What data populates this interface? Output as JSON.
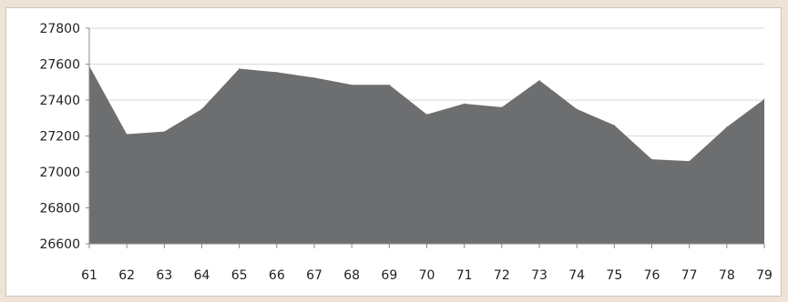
{
  "chart_data": {
    "type": "area",
    "x": [
      "61",
      "62",
      "63",
      "64",
      "65",
      "66",
      "67",
      "68",
      "69",
      "70",
      "71",
      "72",
      "73",
      "74",
      "75",
      "76",
      "77",
      "78",
      "79"
    ],
    "values": [
      27590,
      27210,
      27225,
      27350,
      27575,
      27555,
      27525,
      27485,
      27485,
      27320,
      27380,
      27360,
      27510,
      27350,
      27260,
      27070,
      27060,
      27250,
      27405
    ],
    "ylim": [
      26600,
      27800
    ],
    "yticks": [
      26600,
      26800,
      27000,
      27200,
      27400,
      27600,
      27800
    ],
    "ytick_labels": [
      "26600",
      "26800",
      "27000",
      "27200",
      "27400",
      "27600",
      "27800"
    ],
    "grid": true,
    "legend": "none",
    "fill_color": "#6d6e70",
    "title": "",
    "xlabel": "",
    "ylabel": ""
  }
}
